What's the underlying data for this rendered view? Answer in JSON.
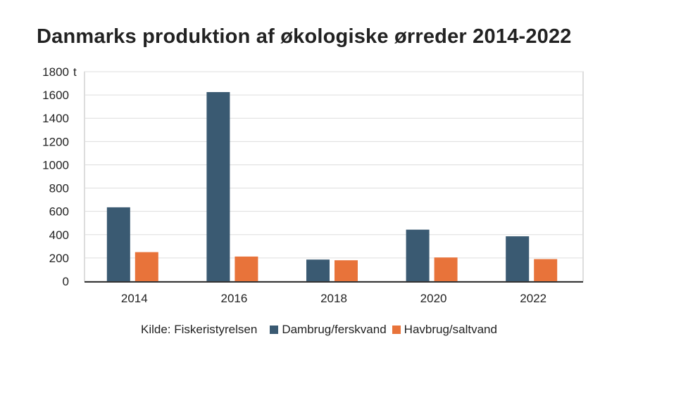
{
  "chart_data": {
    "type": "bar",
    "title": "Danmarks produktion af økologiske ørreder 2014-2022",
    "ylabel_unit": "t",
    "categories": [
      "2014",
      "2016",
      "2018",
      "2020",
      "2022"
    ],
    "series": [
      {
        "name": "Dambrug/ferskvand",
        "color": "#3a5a72",
        "values": [
          635,
          1625,
          186,
          443,
          386
        ]
      },
      {
        "name": "Havbrug/saltvand",
        "color": "#e8733a",
        "values": [
          250,
          212,
          180,
          204,
          190
        ]
      }
    ],
    "ylim": [
      0,
      1800
    ],
    "yticks": [
      "0",
      "200",
      "400",
      "600",
      "800",
      "1000",
      "1200",
      "1400",
      "1600",
      "1800"
    ],
    "grid": true,
    "legend_position": "bottom",
    "source": "Kilde: Fiskeristyrelsen"
  }
}
